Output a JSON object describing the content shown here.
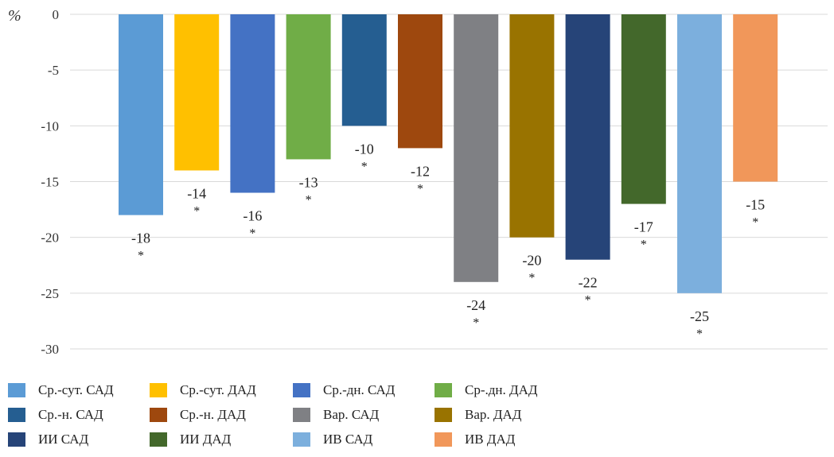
{
  "chart_data": {
    "type": "bar",
    "ylabel": "%",
    "ylim": [
      -30,
      0
    ],
    "yticks": [
      0,
      -5,
      -10,
      -15,
      -20,
      -25,
      -30
    ],
    "grid": true,
    "categories": [
      "Ср.-сут. САД",
      "Ср.-сут. ДАД",
      "Ср.-дн. САД",
      "Ср-.дн. ДАД",
      "Ср.-н. САД",
      "Ср.-н. ДАД",
      "Вар. САД",
      "Вар. ДАД",
      "ИИ САД",
      "ИИ ДАД",
      "ИВ САД",
      "ИВ ДАД"
    ],
    "values": [
      -18,
      -14,
      -16,
      -13,
      -10,
      -12,
      -24,
      -20,
      -22,
      -17,
      -25,
      -15
    ],
    "value_labels": [
      "-18",
      "-14",
      "-16",
      "-13",
      "-10",
      "-12",
      "-24",
      "-20",
      "-22",
      "-17",
      "-25",
      "-15"
    ],
    "significance_marker": "*",
    "colors": [
      "#5b9bd5",
      "#ffc000",
      "#4472c4",
      "#70ad47",
      "#255e91",
      "#9e480e",
      "#7f8084",
      "#997300",
      "#264478",
      "#43682b",
      "#7cafdd",
      "#f1975a"
    ],
    "legend_position": "bottom"
  }
}
